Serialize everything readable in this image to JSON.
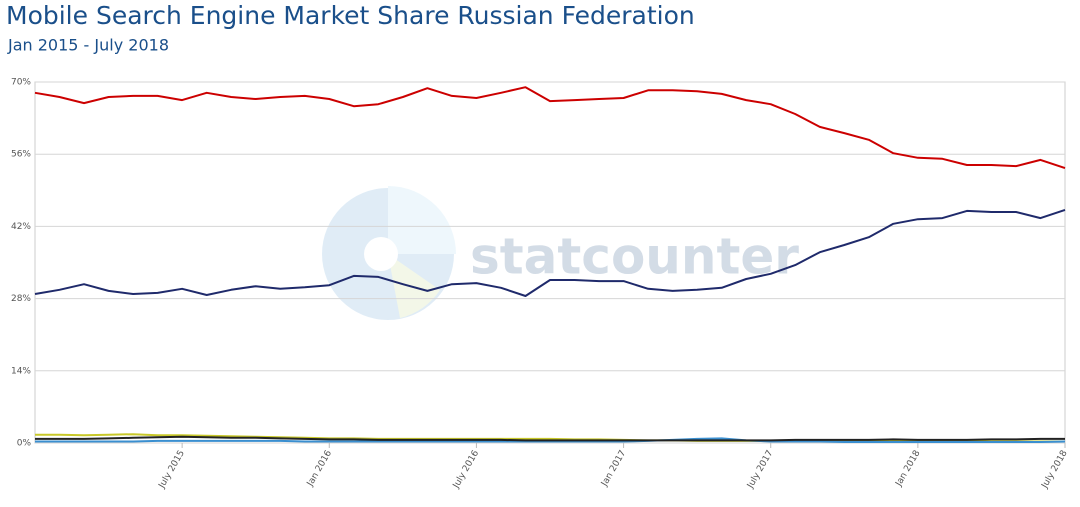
{
  "chart_data": {
    "type": "line",
    "title": "Mobile Search Engine Market Share Russian Federation",
    "subtitle": "Jan 2015 - July 2018",
    "watermark": "statcounter",
    "categories": [
      null,
      null,
      null,
      null,
      null,
      null,
      "July 2015",
      null,
      null,
      null,
      null,
      null,
      "Jan 2016",
      null,
      null,
      null,
      null,
      null,
      "July 2016",
      null,
      null,
      null,
      null,
      null,
      "Jan 2017",
      null,
      null,
      null,
      null,
      null,
      "July 2017",
      null,
      null,
      null,
      null,
      null,
      "Jan 2018",
      null,
      null,
      null,
      null,
      null,
      "July 2018"
    ],
    "series": [
      {
        "color": "#c8c82a",
        "values": [
          1.6,
          1.6,
          1.5,
          1.6,
          1.7,
          1.5,
          1.5,
          1.4,
          1.3,
          1.2,
          1.1,
          1.0,
          0.9,
          0.9,
          0.8,
          0.8,
          0.8,
          0.8,
          0.8,
          0.8,
          0.8,
          0.8,
          0.7,
          0.7,
          0.6,
          0.5,
          0.5,
          0.4,
          0.4,
          0.4,
          0.4,
          0.3,
          0.3,
          0.3,
          0.3,
          0.3,
          0.3,
          0.3,
          0.3,
          0.3,
          0.3,
          0.3,
          0.3
        ]
      },
      {
        "color": "#3a8fd0",
        "values": [
          0.3,
          0.3,
          0.3,
          0.3,
          0.3,
          0.4,
          0.4,
          0.4,
          0.4,
          0.4,
          0.4,
          0.3,
          0.3,
          0.3,
          0.3,
          0.3,
          0.3,
          0.3,
          0.3,
          0.3,
          0.3,
          0.3,
          0.3,
          0.3,
          0.3,
          0.4,
          0.6,
          0.8,
          0.9,
          0.5,
          0.3,
          0.3,
          0.3,
          0.2,
          0.2,
          0.2,
          0.2,
          0.2,
          0.2,
          0.2,
          0.2,
          0.2,
          0.3
        ]
      },
      {
        "color": "#222222",
        "values": [
          0.8,
          0.8,
          0.8,
          0.9,
          1.0,
          1.1,
          1.2,
          1.1,
          1.0,
          1.0,
          0.9,
          0.8,
          0.7,
          0.7,
          0.6,
          0.6,
          0.6,
          0.6,
          0.6,
          0.6,
          0.5,
          0.5,
          0.5,
          0.5,
          0.5,
          0.5,
          0.5,
          0.5,
          0.5,
          0.5,
          0.5,
          0.6,
          0.6,
          0.6,
          0.6,
          0.7,
          0.6,
          0.6,
          0.6,
          0.7,
          0.7,
          0.8,
          0.8
        ]
      },
      {
        "color": "#1f2a6b",
        "values": [
          28.9,
          29.7,
          30.8,
          29.5,
          28.9,
          29.1,
          29.9,
          28.7,
          29.7,
          30.4,
          29.9,
          30.2,
          30.6,
          32.4,
          32.2,
          30.8,
          29.5,
          30.8,
          31.0,
          30.1,
          28.5,
          31.6,
          31.6,
          31.4,
          31.4,
          29.9,
          29.5,
          29.7,
          30.1,
          31.8,
          32.8,
          34.5,
          37.0,
          38.4,
          39.9,
          42.5,
          43.4,
          43.6,
          45.0,
          44.8,
          44.8,
          43.6,
          45.2
        ]
      },
      {
        "color": "#cc0000",
        "values": [
          67.9,
          67.1,
          65.9,
          67.1,
          67.3,
          67.3,
          66.5,
          67.9,
          67.1,
          66.7,
          67.1,
          67.3,
          66.7,
          65.3,
          65.7,
          67.1,
          68.8,
          67.3,
          66.9,
          67.9,
          69.0,
          66.3,
          66.5,
          66.7,
          66.9,
          68.4,
          68.4,
          68.2,
          67.7,
          66.5,
          65.7,
          63.8,
          61.3,
          60.1,
          58.8,
          56.2,
          55.3,
          55.1,
          53.9,
          53.9,
          53.7,
          54.9,
          53.3
        ]
      }
    ],
    "ylim": [
      0,
      70
    ],
    "yticks": [
      {
        "value": 0,
        "label": "0%"
      },
      {
        "value": 14,
        "label": "14%"
      },
      {
        "value": 28,
        "label": "28%"
      },
      {
        "value": 42,
        "label": "42%"
      },
      {
        "value": 56,
        "label": "56%"
      },
      {
        "value": 70,
        "label": "70%"
      }
    ],
    "grid": true
  }
}
